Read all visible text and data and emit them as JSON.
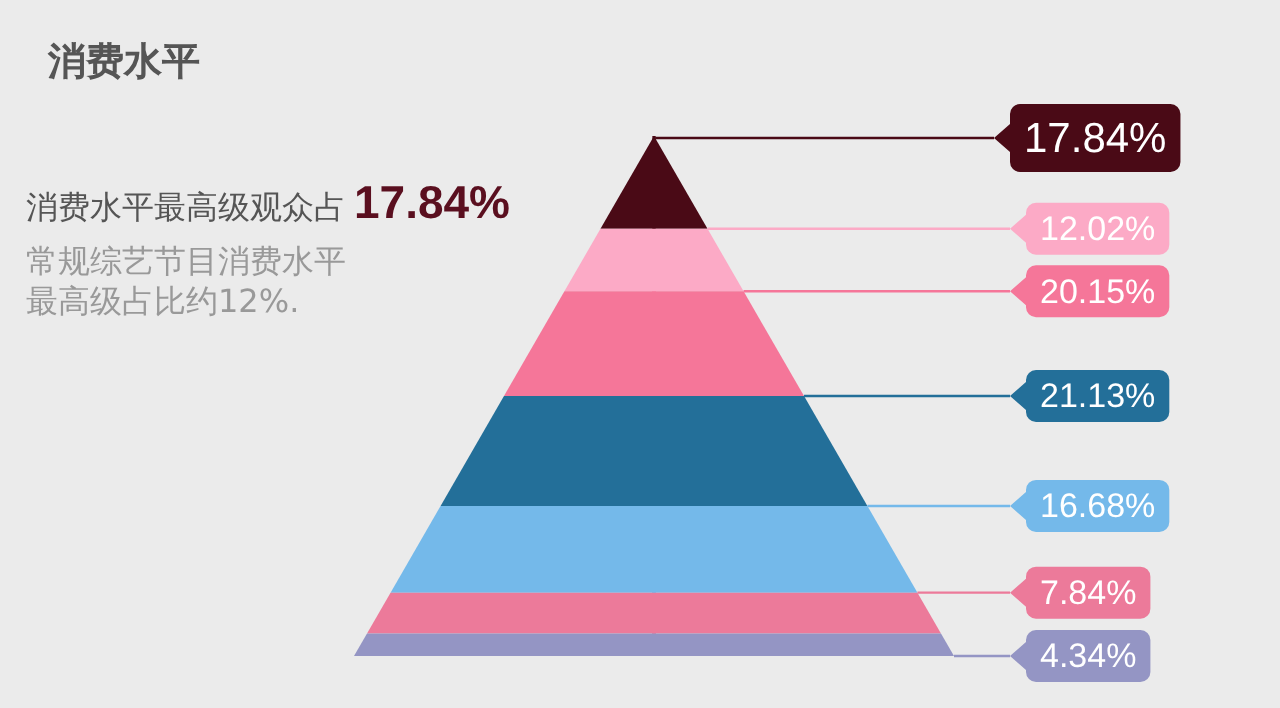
{
  "chart_data": {
    "type": "other",
    "title": "消费水平",
    "annotations": [
      "消费水平最高级观众占",
      "17.84%",
      "常规综艺节目消费水平最高级占比约12%."
    ],
    "categories": [
      null,
      null,
      null,
      null,
      null,
      null,
      null
    ],
    "values": [
      17.84,
      12.02,
      20.15,
      21.13,
      16.68,
      7.84,
      4.34
    ],
    "value_labels": [
      "17.84%",
      "12.02%",
      "20.15%",
      "21.13%",
      "16.68%",
      "7.84%",
      "4.34%"
    ],
    "colors": [
      "#4a0a16",
      "#fcaac6",
      "#f57699",
      "#236f99",
      "#74b9ea",
      "#ec7a9a",
      "#9495c4"
    ]
  }
}
